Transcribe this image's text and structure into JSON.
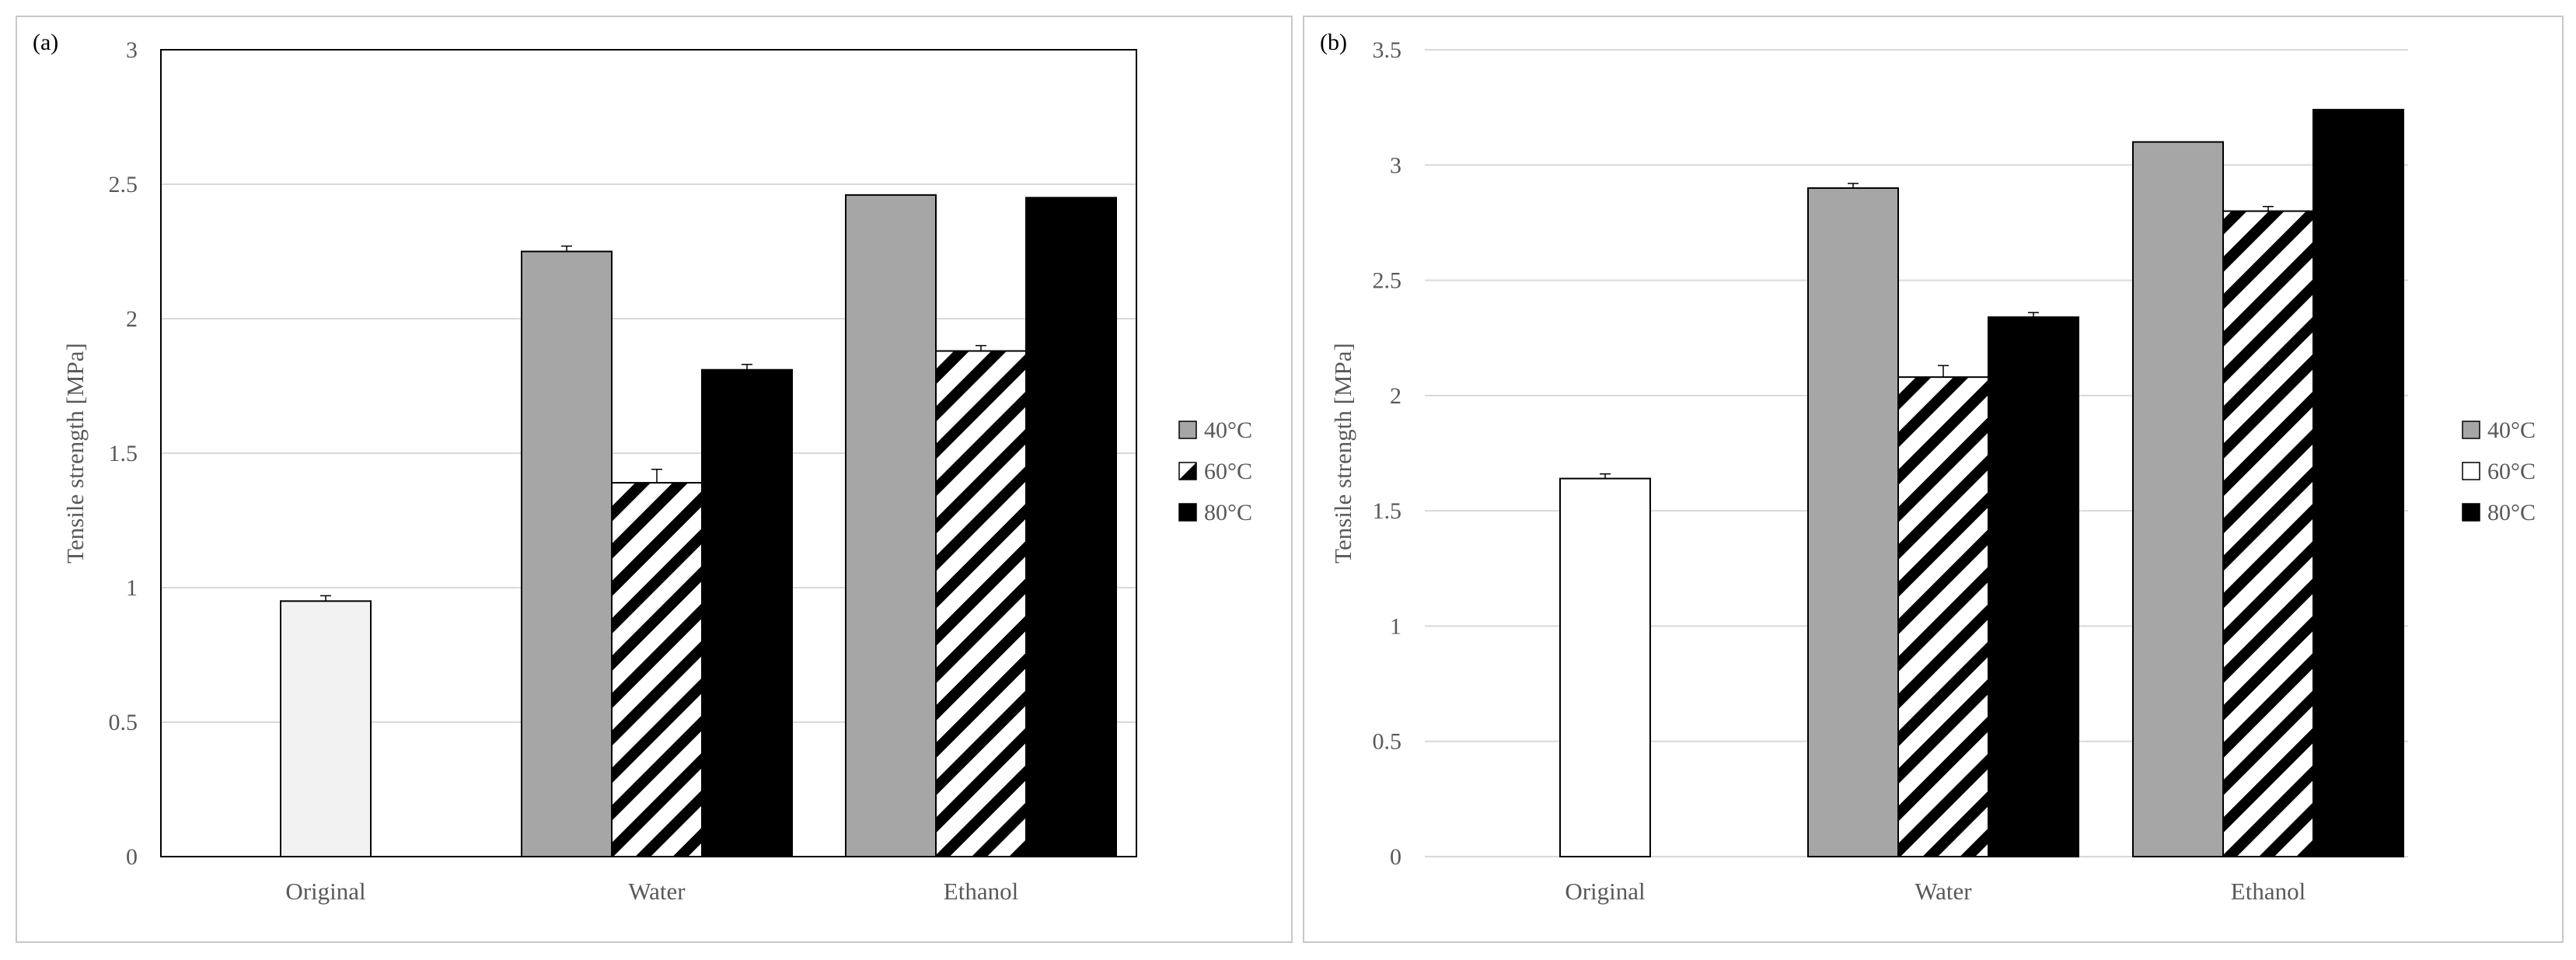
{
  "chart_data": [
    {
      "type": "bar",
      "panel_label": "(a)",
      "ylabel": "Tensile strength [MPa]",
      "xlabel": "",
      "ylim": [
        0,
        3
      ],
      "ytick_step": 0.5,
      "ytick_labels": [
        "0",
        "0.5",
        "1",
        "1.5",
        "2",
        "2.5",
        "3"
      ],
      "grid": true,
      "plot_border": true,
      "legend_position": "right",
      "legend": [
        "40°C",
        "60°C",
        "80°C"
      ],
      "groups": [
        {
          "label": "Original",
          "bars": [
            {
              "series": "Original",
              "value": 0.95,
              "error": 0.02
            }
          ]
        },
        {
          "label": "Water",
          "bars": [
            {
              "series": "40°C",
              "value": 2.25,
              "error": 0.02
            },
            {
              "series": "60°C",
              "value": 1.39,
              "error": 0.05
            },
            {
              "series": "80°C",
              "value": 1.81,
              "error": 0.02
            }
          ]
        },
        {
          "label": "Ethanol",
          "bars": [
            {
              "series": "40°C",
              "value": 2.46,
              "error": 0.0
            },
            {
              "series": "60°C",
              "value": 1.88,
              "error": 0.02
            },
            {
              "series": "80°C",
              "value": 2.45,
              "error": 0.0
            }
          ]
        }
      ],
      "colors": {
        "original": "#f2f2f2",
        "40°C": "#a6a6a6",
        "60°C": "hatch",
        "80°C": "#000000"
      }
    },
    {
      "type": "bar",
      "panel_label": "(b)",
      "ylabel": "Tensile strength [MPa]",
      "xlabel": "",
      "ylim": [
        0,
        3.5
      ],
      "ytick_step": 0.5,
      "ytick_labels": [
        "0",
        "0.5",
        "1",
        "1.5",
        "2",
        "2.5",
        "3",
        "3.5"
      ],
      "grid": true,
      "plot_border": false,
      "legend_position": "right",
      "legend": [
        "40°C",
        "60°C",
        "80°C"
      ],
      "groups": [
        {
          "label": "Original",
          "bars": [
            {
              "series": "Original",
              "value": 1.64,
              "error": 0.02
            }
          ]
        },
        {
          "label": "Water",
          "bars": [
            {
              "series": "40°C",
              "value": 2.9,
              "error": 0.02
            },
            {
              "series": "60°C",
              "value": 2.08,
              "error": 0.05
            },
            {
              "series": "80°C",
              "value": 2.34,
              "error": 0.02
            }
          ]
        },
        {
          "label": "Ethanol",
          "bars": [
            {
              "series": "40°C",
              "value": 3.1,
              "error": 0.0
            },
            {
              "series": "60°C",
              "value": 2.8,
              "error": 0.02
            },
            {
              "series": "80°C",
              "value": 3.24,
              "error": 0.0
            }
          ]
        }
      ],
      "colors": {
        "original": "#ffffff",
        "40°C": "#a6a6a6",
        "60°C": "hatch",
        "80°C": "#000000"
      }
    }
  ]
}
